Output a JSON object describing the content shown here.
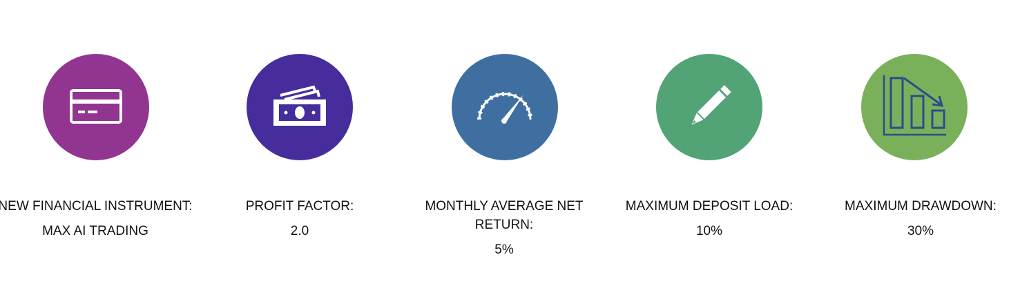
{
  "metrics": [
    {
      "icon": "credit-card-icon",
      "color": "#913590",
      "label": "NEW FINANCIAL INSTRUMENT:",
      "value": "MAX AI TRADING"
    },
    {
      "icon": "cash-icon",
      "color": "#462D9B",
      "label": "PROFIT FACTOR:",
      "value": "2.0"
    },
    {
      "icon": "speedometer-icon",
      "color": "#3F6FA0",
      "label": "MONTHLY AVERAGE NET RETURN:",
      "value": "5%"
    },
    {
      "icon": "pencil-icon",
      "color": "#52A376",
      "label": "MAXIMUM DEPOSIT LOAD:",
      "value": "10%"
    },
    {
      "icon": "declining-bar-chart-icon",
      "color": "#7AB05A",
      "label": "MAXIMUM DRAWDOWN:",
      "value": "30%"
    }
  ]
}
